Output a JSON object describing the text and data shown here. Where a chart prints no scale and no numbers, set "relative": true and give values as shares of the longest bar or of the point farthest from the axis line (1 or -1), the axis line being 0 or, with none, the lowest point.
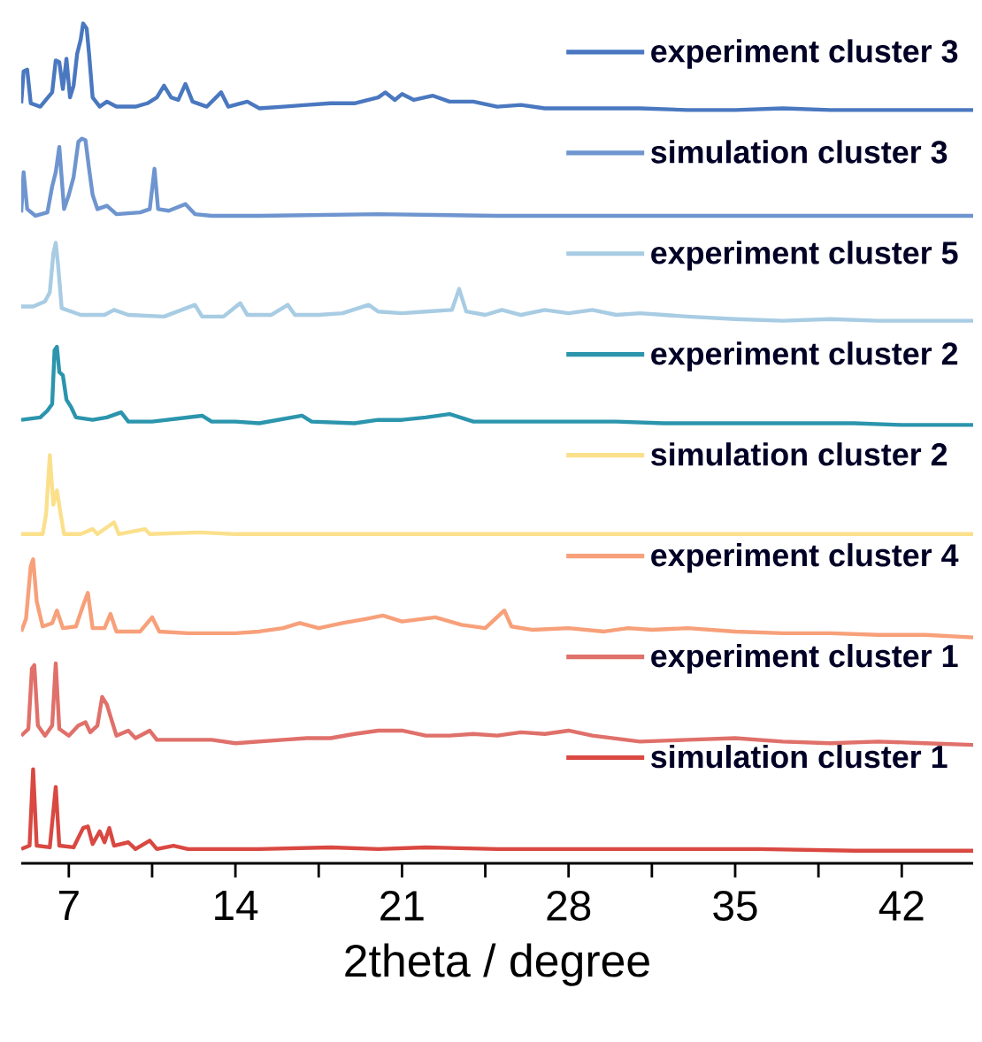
{
  "chart_data": {
    "type": "line",
    "relative": true,
    "xlabel": "2theta / degree",
    "xlim": [
      5,
      45
    ],
    "xticks": [
      7,
      {
        "value": 10.5,
        "label": null
      },
      14,
      {
        "value": 17.5,
        "label": null
      },
      21,
      {
        "value": 24.5,
        "label": null
      },
      28,
      {
        "value": 31.5,
        "label": null
      },
      35,
      {
        "value": 38.5,
        "label": null
      },
      42
    ],
    "legend": "top right",
    "series": [
      {
        "name": "experiment cluster 3",
        "color": "#4a78c0",
        "x": [
          5.0,
          5.1,
          5.25,
          5.4,
          5.8,
          6.3,
          6.45,
          6.6,
          6.75,
          6.9,
          7.05,
          7.2,
          7.35,
          7.5,
          7.6,
          7.75,
          7.85,
          8.0,
          8.3,
          8.6,
          9.0,
          9.8,
          10.3,
          10.7,
          11.0,
          11.3,
          11.6,
          11.9,
          12.2,
          12.8,
          13.4,
          13.7,
          14.5,
          15,
          16,
          17,
          18,
          19,
          20,
          20.3,
          20.7,
          21.0,
          21.5,
          22.3,
          23,
          24,
          25,
          26,
          27,
          29,
          31,
          33,
          35,
          37,
          39,
          41,
          43,
          45
        ],
        "values": [
          0.905,
          0.943,
          0.945,
          0.905,
          0.901,
          0.918,
          0.956,
          0.954,
          0.922,
          0.958,
          0.912,
          0.926,
          0.964,
          0.981,
          1,
          0.994,
          0.964,
          0.912,
          0.901,
          0.907,
          0.901,
          0.901,
          0.905,
          0.912,
          0.926,
          0.912,
          0.909,
          0.928,
          0.907,
          0.901,
          0.918,
          0.901,
          0.907,
          0.899,
          0.901,
          0.903,
          0.905,
          0.905,
          0.912,
          0.918,
          0.909,
          0.916,
          0.909,
          0.914,
          0.907,
          0.907,
          0.901,
          0.903,
          0.899,
          0.899,
          0.899,
          0.897,
          0.897,
          0.899,
          0.897,
          0.897,
          0.897,
          0.897
        ]
      },
      {
        "name": "simulation cluster 3",
        "color": "#6e95cf",
        "x": [
          5.0,
          5.1,
          5.25,
          5.6,
          6.1,
          6.3,
          6.45,
          6.6,
          6.8,
          7.0,
          7.2,
          7.4,
          7.55,
          7.7,
          7.85,
          8.0,
          8.2,
          8.6,
          9.0,
          10.0,
          10.4,
          10.6,
          10.75,
          11.2,
          11.9,
          12.3,
          13,
          15,
          20,
          25,
          30,
          35,
          40,
          45
        ],
        "values": [
          0.775,
          0.823,
          0.779,
          0.771,
          0.775,
          0.806,
          0.823,
          0.853,
          0.779,
          0.796,
          0.817,
          0.859,
          0.863,
          0.861,
          0.827,
          0.796,
          0.779,
          0.783,
          0.773,
          0.775,
          0.779,
          0.827,
          0.779,
          0.777,
          0.785,
          0.773,
          0.771,
          0.771,
          0.773,
          0.771,
          0.771,
          0.771,
          0.771,
          0.771
        ]
      },
      {
        "name": "experiment cluster 5",
        "color": "#a8cce3",
        "x": [
          5.0,
          5.5,
          6.0,
          6.2,
          6.35,
          6.45,
          6.55,
          6.7,
          7.5,
          8.5,
          8.9,
          9.5,
          11,
          12.3,
          12.6,
          13.5,
          14.2,
          14.5,
          15.5,
          16.2,
          16.5,
          17.5,
          18.5,
          19.6,
          20,
          21,
          22,
          23.1,
          23.4,
          23.7,
          24.5,
          25.2,
          26,
          27,
          28,
          29,
          30,
          31,
          32,
          33,
          35,
          37,
          39,
          41,
          43,
          45
        ],
        "values": [
          0.663,
          0.663,
          0.669,
          0.68,
          0.726,
          0.739,
          0.712,
          0.661,
          0.653,
          0.653,
          0.659,
          0.653,
          0.651,
          0.665,
          0.651,
          0.651,
          0.667,
          0.653,
          0.653,
          0.665,
          0.653,
          0.653,
          0.655,
          0.665,
          0.657,
          0.655,
          0.657,
          0.659,
          0.684,
          0.657,
          0.653,
          0.659,
          0.653,
          0.659,
          0.655,
          0.659,
          0.653,
          0.655,
          0.653,
          0.651,
          0.648,
          0.646,
          0.648,
          0.646,
          0.646,
          0.646
        ]
      },
      {
        "name": "experiment cluster 2",
        "color": "#2b95ad",
        "x": [
          5.0,
          5.8,
          6.1,
          6.3,
          6.4,
          6.5,
          6.6,
          6.75,
          6.9,
          7.1,
          7.3,
          8.0,
          8.6,
          9.2,
          9.5,
          10.5,
          12.6,
          13,
          14,
          15,
          16.8,
          17.2,
          19,
          20,
          21,
          22,
          23,
          24,
          26,
          28,
          30,
          32,
          34,
          36,
          38,
          40,
          42,
          45
        ],
        "values": [
          0.528,
          0.531,
          0.539,
          0.547,
          0.611,
          0.615,
          0.585,
          0.581,
          0.552,
          0.543,
          0.531,
          0.528,
          0.531,
          0.537,
          0.526,
          0.526,
          0.533,
          0.526,
          0.526,
          0.524,
          0.533,
          0.526,
          0.524,
          0.528,
          0.528,
          0.531,
          0.535,
          0.526,
          0.526,
          0.526,
          0.526,
          0.524,
          0.524,
          0.524,
          0.524,
          0.524,
          0.522,
          0.522
        ]
      },
      {
        "name": "simulation cluster 2",
        "color": "#fbe08c",
        "x": [
          5,
          5.9,
          6.05,
          6.2,
          6.35,
          6.5,
          6.65,
          6.8,
          7.5,
          8.0,
          8.2,
          8.9,
          9.1,
          10.2,
          10.4,
          12.5,
          14,
          20,
          25,
          30,
          35,
          45
        ],
        "values": [
          0.392,
          0.392,
          0.417,
          0.486,
          0.427,
          0.444,
          0.417,
          0.392,
          0.392,
          0.398,
          0.392,
          0.406,
          0.392,
          0.398,
          0.392,
          0.394,
          0.392,
          0.392,
          0.392,
          0.392,
          0.392,
          0.392
        ]
      },
      {
        "name": "experiment cluster 4",
        "color": "#f7a07a",
        "x": [
          5.0,
          5.2,
          5.4,
          5.5,
          5.65,
          5.9,
          6.3,
          6.5,
          6.75,
          7.3,
          7.6,
          7.8,
          8.0,
          8.5,
          8.75,
          9.0,
          10.0,
          10.5,
          10.8,
          12,
          13,
          14,
          15,
          16,
          16.7,
          17.5,
          18.5,
          19.5,
          20.2,
          21,
          22.4,
          23.5,
          24.5,
          25.3,
          25.6,
          26.5,
          28,
          29.5,
          30.5,
          31.5,
          33,
          35,
          37,
          39,
          41,
          43,
          45
        ],
        "values": [
          0.276,
          0.291,
          0.354,
          0.362,
          0.312,
          0.282,
          0.286,
          0.301,
          0.28,
          0.282,
          0.307,
          0.322,
          0.28,
          0.28,
          0.297,
          0.276,
          0.276,
          0.293,
          0.276,
          0.274,
          0.274,
          0.274,
          0.276,
          0.28,
          0.286,
          0.28,
          0.286,
          0.291,
          0.295,
          0.288,
          0.293,
          0.284,
          0.28,
          0.301,
          0.282,
          0.278,
          0.28,
          0.276,
          0.28,
          0.278,
          0.28,
          0.276,
          0.274,
          0.274,
          0.272,
          0.272,
          0.269
        ]
      },
      {
        "name": "experiment cluster 1",
        "color": "#e0706a",
        "x": [
          5.0,
          5.3,
          5.45,
          5.55,
          5.7,
          6.0,
          6.3,
          6.45,
          6.6,
          7.0,
          7.4,
          7.7,
          7.9,
          8.2,
          8.4,
          8.6,
          8.75,
          9.0,
          9.5,
          9.8,
          10.4,
          10.7,
          12,
          13,
          14,
          15,
          16,
          17,
          18,
          19,
          20,
          21,
          22,
          23,
          24,
          25,
          26,
          27,
          28,
          29,
          31,
          33,
          35,
          37,
          39,
          41,
          43,
          45
        ],
        "values": [
          0.152,
          0.16,
          0.232,
          0.236,
          0.164,
          0.152,
          0.164,
          0.238,
          0.16,
          0.152,
          0.164,
          0.168,
          0.156,
          0.164,
          0.198,
          0.189,
          0.175,
          0.152,
          0.158,
          0.149,
          0.158,
          0.147,
          0.147,
          0.147,
          0.143,
          0.145,
          0.147,
          0.149,
          0.149,
          0.154,
          0.158,
          0.158,
          0.152,
          0.152,
          0.154,
          0.152,
          0.156,
          0.154,
          0.158,
          0.152,
          0.145,
          0.147,
          0.149,
          0.145,
          0.143,
          0.145,
          0.143,
          0.141
        ]
      },
      {
        "name": "simulation cluster 1",
        "color": "#d94841",
        "x": [
          5.0,
          5.35,
          5.5,
          5.65,
          6.2,
          6.45,
          6.6,
          7.2,
          7.6,
          7.8,
          8.0,
          8.3,
          8.5,
          8.7,
          8.9,
          9.5,
          9.8,
          10.4,
          10.7,
          11.4,
          12,
          15,
          18,
          20,
          22,
          25,
          28,
          32,
          36,
          40,
          45
        ],
        "values": [
          0.017,
          0.021,
          0.112,
          0.021,
          0.019,
          0.091,
          0.021,
          0.019,
          0.042,
          0.044,
          0.023,
          0.038,
          0.025,
          0.042,
          0.021,
          0.025,
          0.017,
          0.027,
          0.017,
          0.021,
          0.017,
          0.017,
          0.019,
          0.017,
          0.019,
          0.017,
          0.017,
          0.017,
          0.017,
          0.015,
          0.015
        ]
      }
    ]
  }
}
